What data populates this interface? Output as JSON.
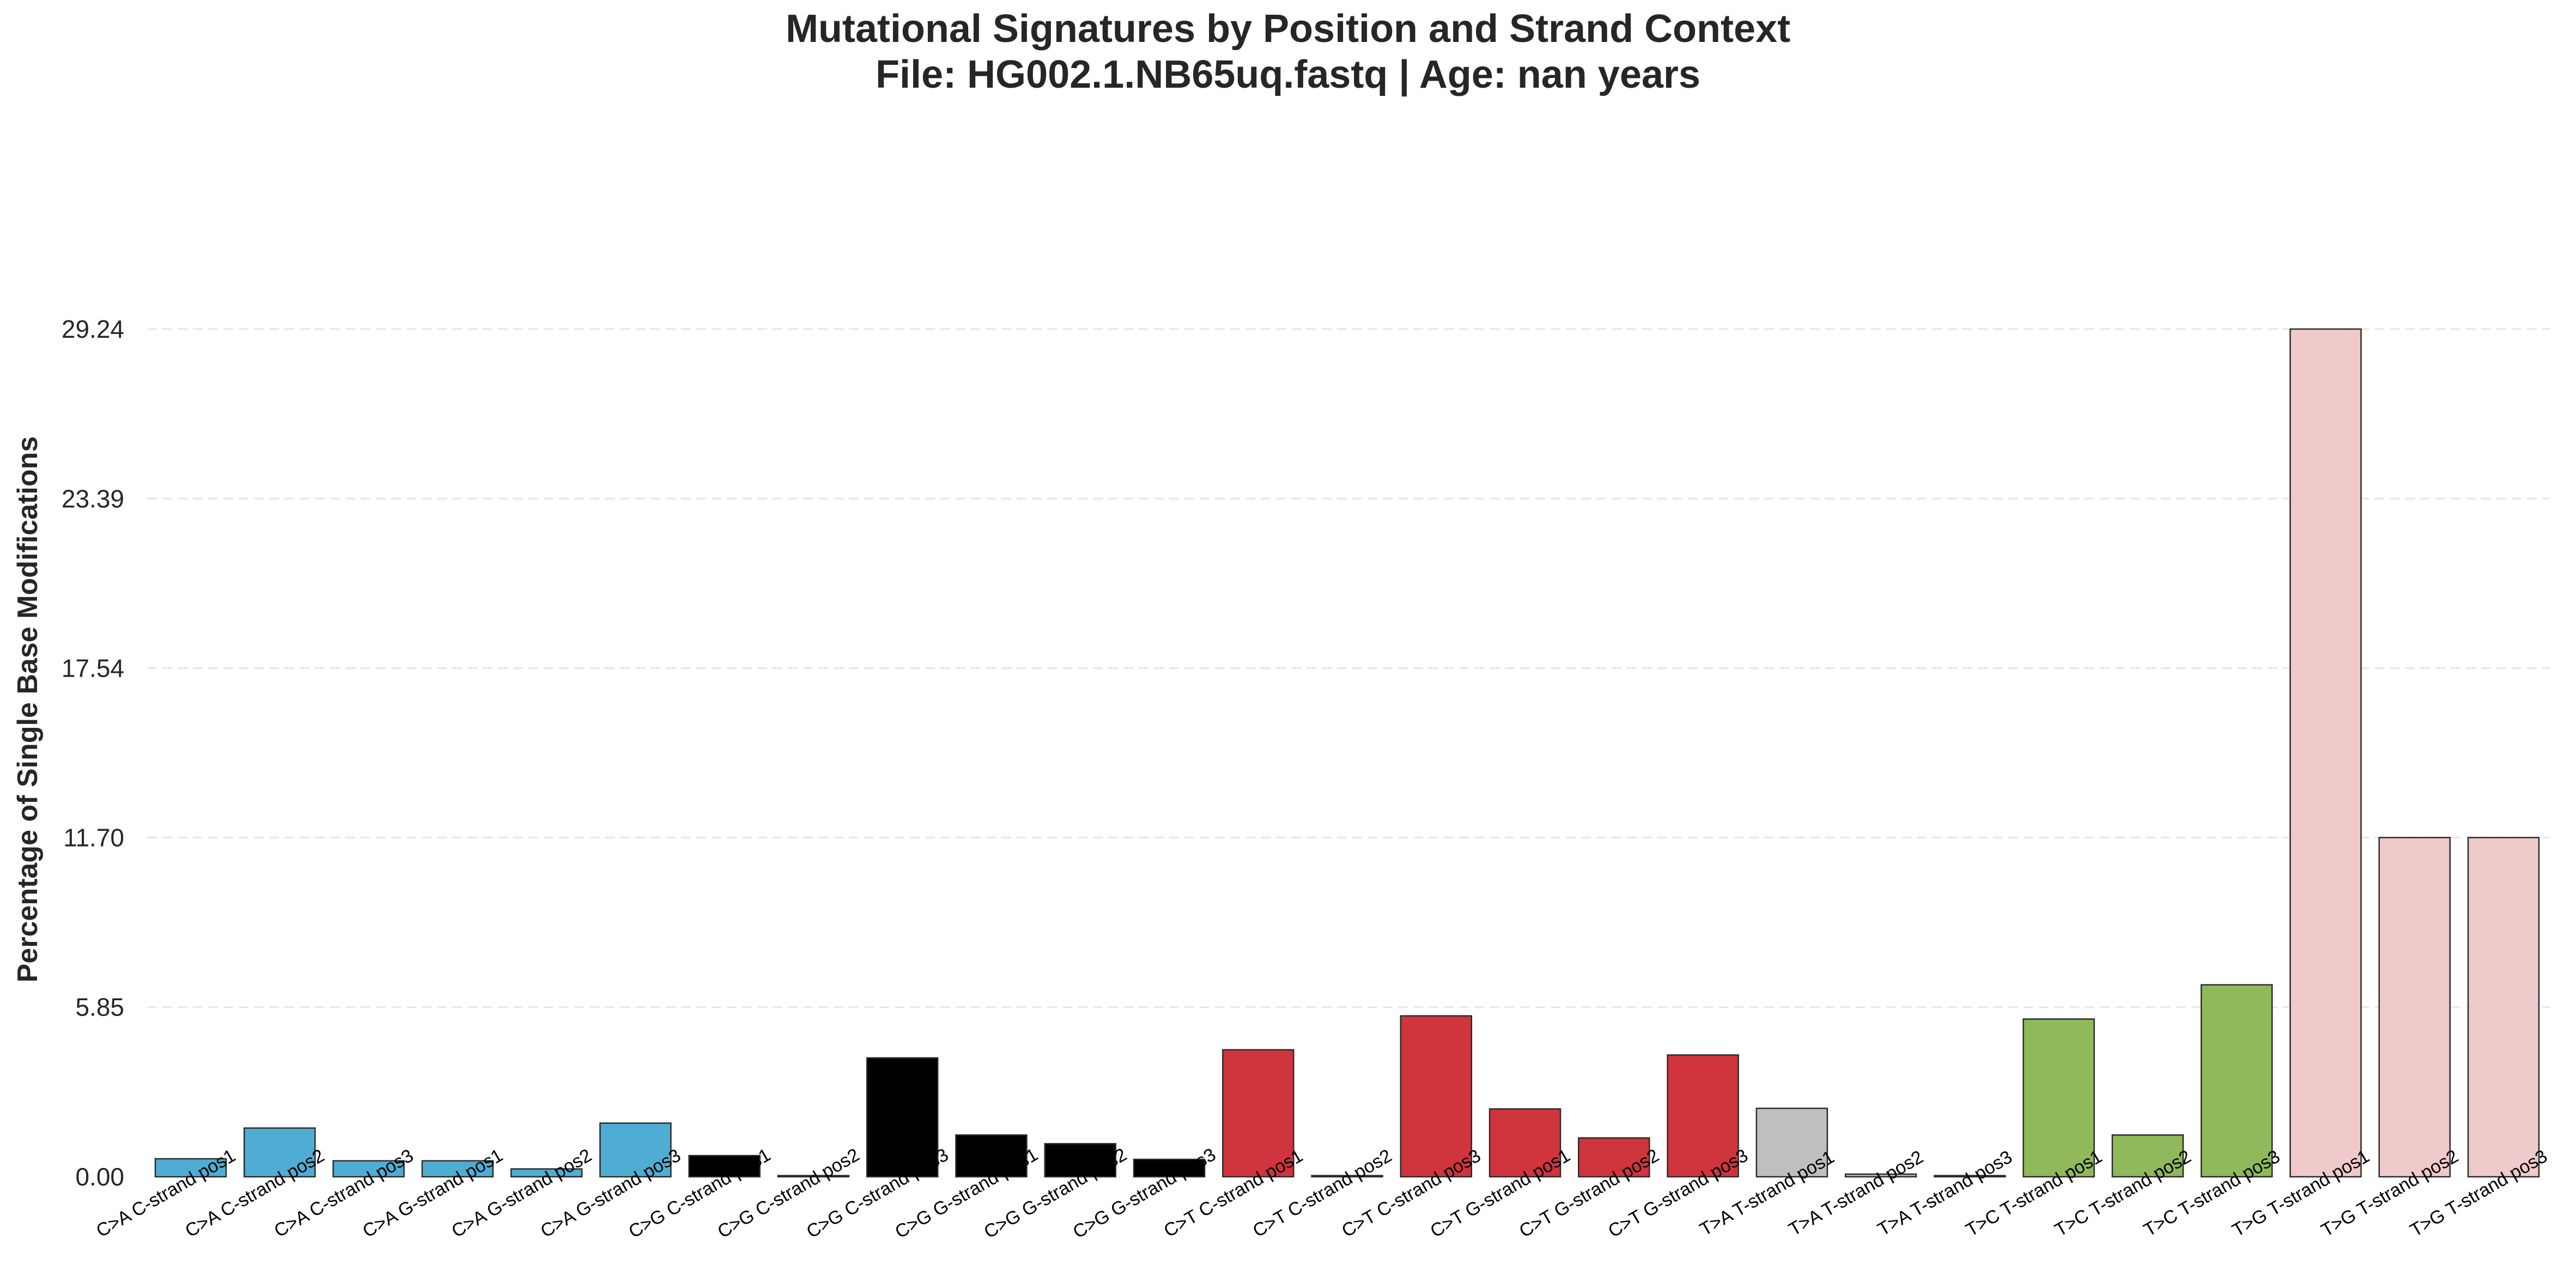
{
  "chart_data": {
    "type": "bar",
    "title": "Mutational Signatures by Position and Strand Context",
    "subtitle": "File: HG002.1.NB65uq.fastq | Age: nan years",
    "xlabel": "",
    "ylabel": "Percentage of Single Base Modifications",
    "ylim": [
      0,
      29.24
    ],
    "yticks": [
      "0.00",
      "5.85",
      "11.70",
      "17.54",
      "23.39",
      "29.24"
    ],
    "grid": "y-dashed",
    "categories": [
      "C>A C-strand pos1",
      "C>A C-strand pos2",
      "C>A C-strand pos3",
      "C>A G-strand pos1",
      "C>A G-strand pos2",
      "C>A G-strand pos3",
      "C>G C-strand pos1",
      "C>G C-strand pos2",
      "C>G C-strand pos3",
      "C>G G-strand pos1",
      "C>G G-strand pos2",
      "C>G G-strand pos3",
      "C>T C-strand pos1",
      "C>T C-strand pos2",
      "C>T C-strand pos3",
      "C>T G-strand pos1",
      "C>T G-strand pos2",
      "C>T G-strand pos3",
      "T>A T-strand pos1",
      "T>A T-strand pos2",
      "T>A T-strand pos3",
      "T>C T-strand pos1",
      "T>C T-strand pos2",
      "T>C T-strand pos3",
      "T>G T-strand pos1",
      "T>G T-strand pos2",
      "T>G T-strand pos3"
    ],
    "values": [
      0.62,
      1.68,
      0.55,
      0.55,
      0.27,
      1.85,
      0.73,
      0.04,
      4.1,
      1.44,
      1.14,
      0.6,
      4.38,
      0.04,
      5.55,
      2.34,
      1.34,
      4.2,
      2.36,
      0.09,
      0.04,
      5.44,
      1.44,
      6.62,
      29.24,
      11.7,
      11.7
    ],
    "colors": [
      "#4fadd4",
      "#4fadd4",
      "#4fadd4",
      "#4fadd4",
      "#4fadd4",
      "#4fadd4",
      "#000000",
      "#000000",
      "#000000",
      "#000000",
      "#000000",
      "#000000",
      "#d0343c",
      "#d0343c",
      "#d0343c",
      "#d0343c",
      "#d0343c",
      "#d0343c",
      "#bfbfbf",
      "#bfbfbf",
      "#bfbfbf",
      "#8fb95a",
      "#8fb95a",
      "#8fb95a",
      "#f0c9cb",
      "#f0c9cb",
      "#f0c9cb"
    ]
  }
}
